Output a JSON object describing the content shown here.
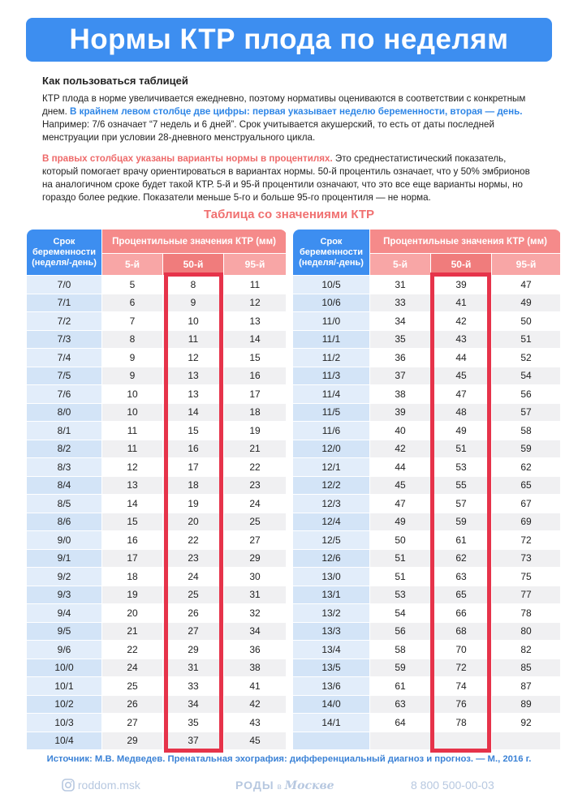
{
  "title": "Нормы КТР плода по неделям",
  "intro": {
    "heading": "Как пользоваться таблицей",
    "p1_text": "КТР плода в норме увеличивается ежедневно, поэтому нормативы оцениваются в соответствии с конкретным днем.",
    "p1_highlight": "В крайнем левом столбце две цифры: первая указывает неделю беременности, вторая — день.",
    "p1_note": "Например: 7/6 означает “7 недель и 6 дней”. Срок учитывается акушерский, то есть от даты последней менструации при условии 28-дневного менструального цикла.",
    "p2_highlight": "В правых столбцах указаны варианты нормы в процентилях.",
    "p2_text": "Это среднестатистический показатель, который помогает врачу ориентироваться в вариантах нормы. 50-й процентиль означает, что у 50% эмбрионов на аналогичном сроке будет такой КТР.  5-й и 95-й процентили означают, что это все еще варианты нормы, но гораздо более редкие. Показатели меньше 5-го и больше 95-го процентиля — не норма."
  },
  "table_title": "Таблица со значениями КТР",
  "table_header": {
    "term": "Срок беременности (неделя/-день)",
    "percentile": "Процентильные значения КТР (мм)",
    "p5": "5-й",
    "p50": "50-й",
    "p95": "95-й"
  },
  "tables": [
    {
      "rows": [
        [
          "7/0",
          5,
          8,
          11
        ],
        [
          "7/1",
          6,
          9,
          12
        ],
        [
          "7/2",
          7,
          10,
          13
        ],
        [
          "7/3",
          8,
          11,
          14
        ],
        [
          "7/4",
          9,
          12,
          15
        ],
        [
          "7/5",
          9,
          13,
          16
        ],
        [
          "7/6",
          10,
          13,
          17
        ],
        [
          "8/0",
          10,
          14,
          18
        ],
        [
          "8/1",
          11,
          15,
          19
        ],
        [
          "8/2",
          11,
          16,
          21
        ],
        [
          "8/3",
          12,
          17,
          22
        ],
        [
          "8/4",
          13,
          18,
          23
        ],
        [
          "8/5",
          14,
          19,
          24
        ],
        [
          "8/6",
          15,
          20,
          25
        ],
        [
          "9/0",
          16,
          22,
          27
        ],
        [
          "9/1",
          17,
          23,
          29
        ],
        [
          "9/2",
          18,
          24,
          30
        ],
        [
          "9/3",
          19,
          25,
          31
        ],
        [
          "9/4",
          20,
          26,
          32
        ],
        [
          "9/5",
          21,
          27,
          34
        ],
        [
          "9/6",
          22,
          29,
          36
        ],
        [
          "10/0",
          24,
          31,
          38
        ],
        [
          "10/1",
          25,
          33,
          41
        ],
        [
          "10/2",
          26,
          34,
          42
        ],
        [
          "10/3",
          27,
          35,
          43
        ],
        [
          "10/4",
          29,
          37,
          45
        ]
      ]
    },
    {
      "rows": [
        [
          "10/5",
          31,
          39,
          47
        ],
        [
          "10/6",
          33,
          41,
          49
        ],
        [
          "11/0",
          34,
          42,
          50
        ],
        [
          "11/1",
          35,
          43,
          51
        ],
        [
          "11/2",
          36,
          44,
          52
        ],
        [
          "11/3",
          37,
          45,
          54
        ],
        [
          "11/4",
          38,
          47,
          56
        ],
        [
          "11/5",
          39,
          48,
          57
        ],
        [
          "11/6",
          40,
          49,
          58
        ],
        [
          "12/0",
          42,
          51,
          59
        ],
        [
          "12/1",
          44,
          53,
          62
        ],
        [
          "12/2",
          45,
          55,
          65
        ],
        [
          "12/3",
          47,
          57,
          67
        ],
        [
          "12/4",
          49,
          59,
          69
        ],
        [
          "12/5",
          50,
          61,
          72
        ],
        [
          "12/6",
          51,
          62,
          73
        ],
        [
          "13/0",
          51,
          63,
          75
        ],
        [
          "13/1",
          53,
          65,
          77
        ],
        [
          "13/2",
          54,
          66,
          78
        ],
        [
          "13/3",
          56,
          68,
          80
        ],
        [
          "13/4",
          58,
          70,
          82
        ],
        [
          "13/5",
          59,
          72,
          85
        ],
        [
          "13/6",
          61,
          74,
          87
        ],
        [
          "14/0",
          63,
          76,
          89
        ],
        [
          "14/1",
          64,
          78,
          92
        ]
      ]
    }
  ],
  "source": "Источник: М.В. Медведев. Пренатальная эхография: дифференциальный диагноз и прогноз. — М., 2016 г.",
  "footer": {
    "instagram": "roddom.msk",
    "logo_main": "РОДЫ",
    "logo_small": "в",
    "logo_script": "Москве",
    "phone": "8 800 500-00-03"
  }
}
